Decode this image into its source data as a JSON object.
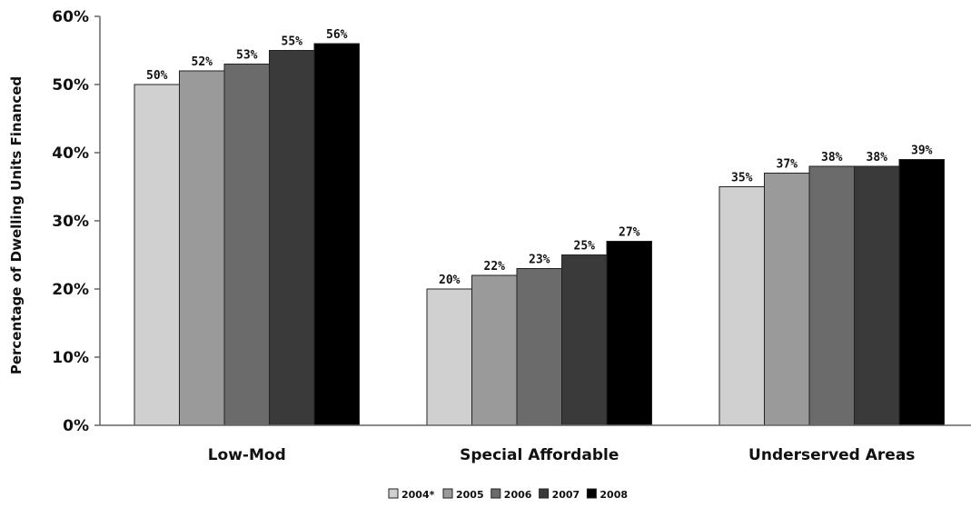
{
  "chart_data": {
    "type": "bar",
    "categories": [
      "Low-Mod",
      "Special Affordable",
      "Underserved Areas"
    ],
    "series": [
      {
        "name": "2004*",
        "color": "#d0d0d0",
        "values": [
          50,
          20,
          35
        ],
        "labels": [
          "50%",
          "20%",
          "35%"
        ]
      },
      {
        "name": "2005",
        "color": "#9a9a9a",
        "values": [
          52,
          22,
          37
        ],
        "labels": [
          "52%",
          "22%",
          "37%"
        ]
      },
      {
        "name": "2006",
        "color": "#6b6b6b",
        "values": [
          53,
          23,
          38
        ],
        "labels": [
          "53%",
          "23%",
          "38%"
        ]
      },
      {
        "name": "2007",
        "color": "#3a3a3a",
        "values": [
          55,
          25,
          38
        ],
        "labels": [
          "55%",
          "25%",
          "38%"
        ]
      },
      {
        "name": "2008",
        "color": "#000000",
        "values": [
          56,
          27,
          39
        ],
        "labels": [
          "56%",
          "27%",
          "39%"
        ]
      }
    ],
    "ylabel": "Percentage of Dwelling Units Financed",
    "xlabel": "",
    "ylim": [
      0,
      60
    ],
    "yticks": [
      0,
      10,
      20,
      30,
      40,
      50,
      60
    ],
    "ytick_labels": [
      "0%",
      "10%",
      "20%",
      "30%",
      "40%",
      "50%",
      "60%"
    ],
    "grid": false,
    "legend_position": "bottom-center"
  }
}
